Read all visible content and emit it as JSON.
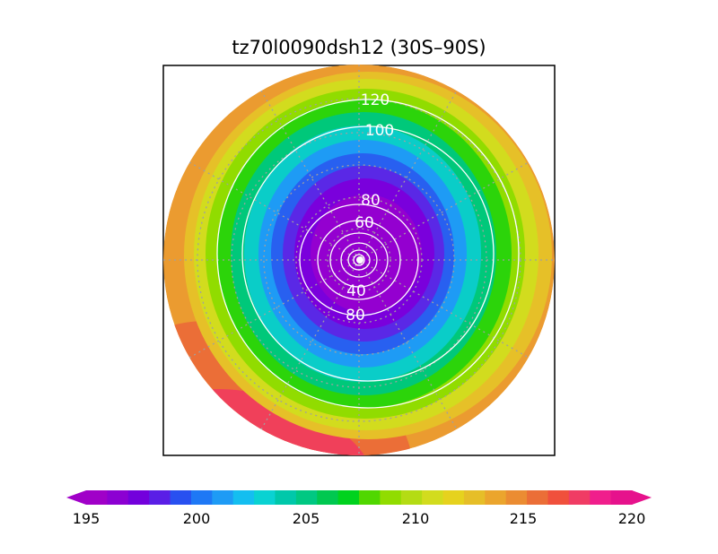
{
  "title": "tz70l0090dsh12 (30S–90S)",
  "map": {
    "projection": "polar stereographic",
    "hemisphere": "south",
    "lat_range": [
      -90,
      -30
    ],
    "graticule": "dotted gray",
    "field_unit_hint": "",
    "contour_line_color": "#ffffff",
    "frame_color": "#000000"
  },
  "contour_labels": [
    "120",
    "100",
    "80",
    "60",
    "40",
    "80"
  ],
  "colorbar": {
    "min": 195,
    "max": 220,
    "step": 1,
    "ticks": [
      "195",
      "200",
      "205",
      "210",
      "215",
      "220"
    ],
    "extend": "both",
    "colors": [
      "#a000c8",
      "#8c00d2",
      "#7300dc",
      "#5a1ee6",
      "#2850f0",
      "#1e78f5",
      "#1e9bf5",
      "#14bef0",
      "#0ad2d2",
      "#00c8aa",
      "#00c882",
      "#00c850",
      "#00d21e",
      "#50d700",
      "#91dc00",
      "#b4dc14",
      "#d2dc1e",
      "#e6d21e",
      "#e6be28",
      "#eba52d",
      "#eb8c32",
      "#eb6e37",
      "#f0503c",
      "#f03c64",
      "#f01e8c",
      "#e6128c"
    ]
  }
}
